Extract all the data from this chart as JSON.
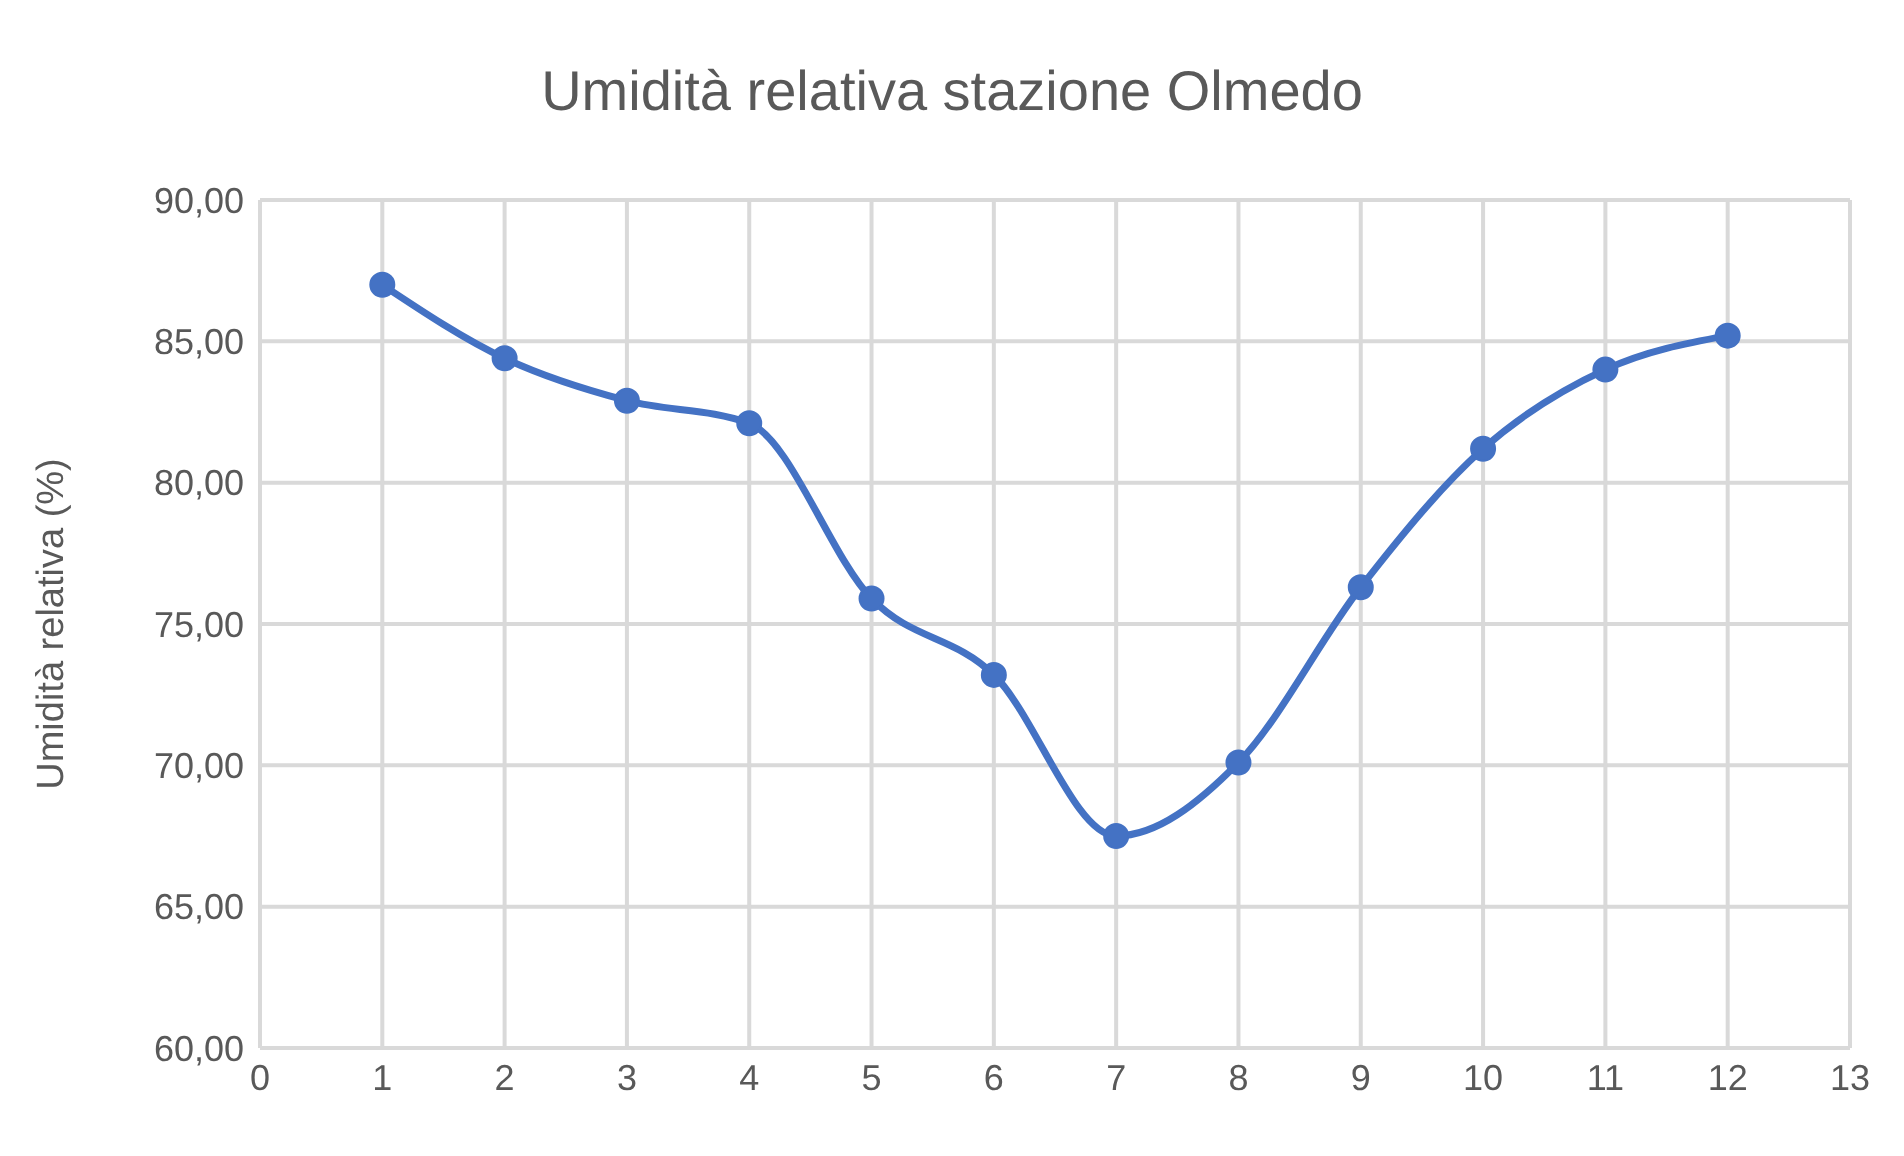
{
  "chart_data": {
    "type": "line",
    "title": "Umidità relativa stazione Olmedo",
    "ylabel": "Umidità relativa (%)",
    "x": [
      1,
      2,
      3,
      4,
      5,
      6,
      7,
      8,
      9,
      10,
      11,
      12
    ],
    "series": [
      {
        "color": "#4472c4",
        "values": [
          87.0,
          84.4,
          82.9,
          82.1,
          75.9,
          73.2,
          67.5,
          70.1,
          76.3,
          81.2,
          84.0,
          85.2
        ]
      }
    ],
    "xlim": [
      0,
      13
    ],
    "xticks": [
      0,
      1,
      2,
      3,
      4,
      5,
      6,
      7,
      8,
      9,
      10,
      11,
      12,
      13
    ],
    "ylim": [
      60,
      90
    ],
    "yticks": [
      {
        "value": 60,
        "label": "60,00"
      },
      {
        "value": 65,
        "label": "65,00"
      },
      {
        "value": 70,
        "label": "70,00"
      },
      {
        "value": 75,
        "label": "75,00"
      },
      {
        "value": 80,
        "label": "80,00"
      },
      {
        "value": 85,
        "label": "85,00"
      },
      {
        "value": 90,
        "label": "90,00"
      }
    ],
    "grid": true,
    "marker": "circle",
    "line_style": "solid"
  }
}
